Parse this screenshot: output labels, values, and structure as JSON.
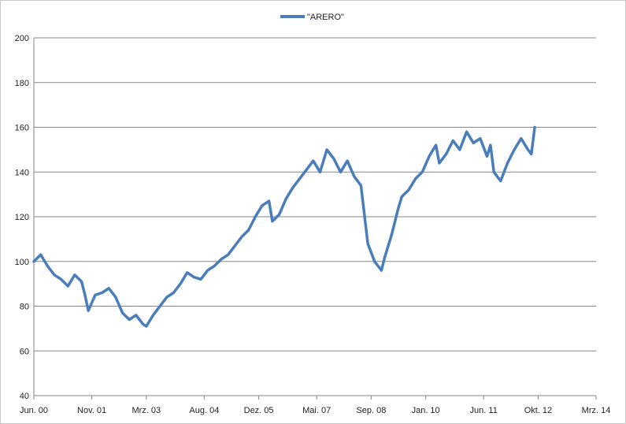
{
  "chart_data": {
    "type": "line",
    "title": "",
    "xlabel": "",
    "ylabel": "",
    "ylim": [
      40,
      200
    ],
    "y_ticks": [
      40,
      60,
      80,
      100,
      120,
      140,
      160,
      180,
      200
    ],
    "x_tick_labels": [
      "Jun. 00",
      "Nov. 01",
      "Mrz. 03",
      "Aug. 04",
      "Dez. 05",
      "Mai. 07",
      "Sep. 08",
      "Jan. 10",
      "Jun. 11",
      "Okt. 12",
      "Mrz. 14"
    ],
    "grid": true,
    "legend": "top-center",
    "series": [
      {
        "name": "\"ARERO\"",
        "color": "#4a7ebb",
        "x": [
          "Jun. 00",
          "Aug. 00",
          "Okt. 00",
          "Dez. 00",
          "Feb. 01",
          "Apr. 01",
          "Jun. 01",
          "Aug. 01",
          "Sep. 01",
          "Okt. 01",
          "Dez. 01",
          "Feb. 02",
          "Apr. 02",
          "Jun. 02",
          "Aug. 02",
          "Okt. 02",
          "Dez. 02",
          "Feb. 03",
          "Mrz. 03",
          "Mai. 03",
          "Jul. 03",
          "Sep. 03",
          "Nov. 03",
          "Jan. 04",
          "Mrz. 04",
          "Mai. 04",
          "Jul. 04",
          "Sep. 04",
          "Nov. 04",
          "Jan. 05",
          "Mrz. 05",
          "Mai. 05",
          "Jul. 05",
          "Sep. 05",
          "Nov. 05",
          "Jan. 06",
          "Mrz. 06",
          "Apr. 06",
          "Jun. 06",
          "Aug. 06",
          "Okt. 06",
          "Dez. 06",
          "Feb. 07",
          "Apr. 07",
          "Jun. 07",
          "Aug. 07",
          "Okt. 07",
          "Dez. 07",
          "Feb. 08",
          "Apr. 08",
          "Jun. 08",
          "Aug. 08",
          "Sep. 08",
          "Okt. 08",
          "Nov. 08",
          "Dez. 08",
          "Jan. 09",
          "Mrz. 09",
          "Apr. 09",
          "Mai. 09",
          "Jun. 09",
          "Aug. 09",
          "Okt. 09",
          "Dez. 09",
          "Feb. 10",
          "Apr. 10",
          "Mai. 10",
          "Jul. 10",
          "Sep. 10",
          "Nov. 10",
          "Jan. 11",
          "Mrz. 11",
          "Mai. 11",
          "Jul. 11",
          "Aug. 11",
          "Sep. 11",
          "Nov. 11",
          "Jan. 12",
          "Mrz. 12",
          "Mai. 12",
          "Jul. 12",
          "Aug. 12",
          "Sep. 12"
        ],
        "values": [
          100,
          103,
          98,
          94,
          92,
          89,
          94,
          91,
          85,
          78,
          85,
          86,
          88,
          84,
          77,
          74,
          76,
          72,
          71,
          76,
          80,
          84,
          86,
          90,
          95,
          93,
          92,
          96,
          98,
          101,
          103,
          107,
          111,
          114,
          120,
          125,
          127,
          118,
          121,
          128,
          133,
          137,
          141,
          145,
          140,
          150,
          146,
          140,
          145,
          138,
          134,
          108,
          104,
          100,
          98,
          96,
          102,
          112,
          118,
          124,
          129,
          132,
          137,
          140,
          147,
          152,
          144,
          148,
          154,
          150,
          158,
          153,
          155,
          147,
          152,
          140,
          136,
          144,
          150,
          155,
          150,
          148,
          160
        ]
      }
    ]
  }
}
